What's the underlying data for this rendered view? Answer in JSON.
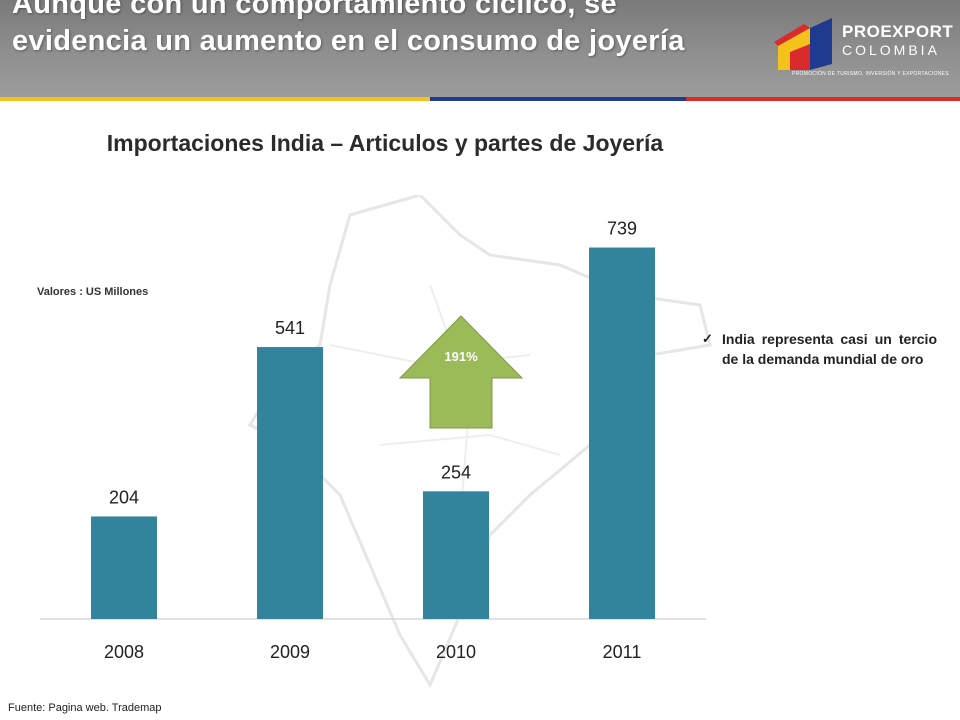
{
  "header": {
    "title": "Aunque con un comportamiento cíclico, se evidencia un aumento en el consumo de joyería",
    "colors": {
      "background": "#8a8a8a",
      "stripe_yellow": "#f4c21a",
      "stripe_blue": "#1f3a8f",
      "stripe_red": "#d92b2b"
    }
  },
  "logo": {
    "line1": "PROEXPORT",
    "line2": "COLOMBIA",
    "tagline": "PROMOCIÓN DE TURISMO, INVERSIÓN Y EXPORTACIONES"
  },
  "chart_data": {
    "type": "bar",
    "title": "Importaciones India – Articulos y partes de Joyería",
    "units_label": "Valores : US Millones",
    "categories": [
      "2008",
      "2009",
      "2010",
      "2011"
    ],
    "values": [
      204,
      541,
      254,
      739
    ],
    "value_labels": [
      "204",
      "541",
      "254",
      "739"
    ],
    "ylim": [
      0,
      750
    ],
    "xlabel": "",
    "ylabel": "",
    "grid": false,
    "bar_color": "#31849b",
    "annotation": {
      "text": "191%",
      "shape": "up-arrow",
      "color": "#9bbb59"
    }
  },
  "note": {
    "check_icon": "check-icon",
    "text": "India representa casi un tercio de la demanda mundial de oro"
  },
  "footer": {
    "source": "Fuente: Pagina web. Trademap"
  }
}
